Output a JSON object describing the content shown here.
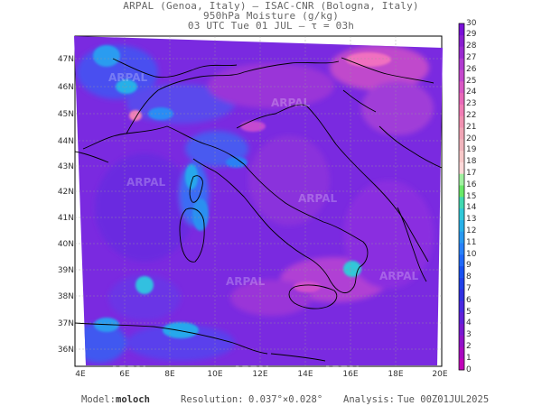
{
  "header": {
    "line1": "ARPAL (Genoa, Italy)  —  ISAC-CNR (Bologna, Italy)",
    "line2": "950hPa Moisture (g/kg)",
    "line3": "03 UTC Tue 01 JUL  —  τ = 03h"
  },
  "map": {
    "lat_labels": [
      "47N",
      "46N",
      "45N",
      "44N",
      "43N",
      "42N",
      "41N",
      "40N",
      "39N",
      "38N",
      "37N",
      "36N"
    ],
    "lon_labels": [
      "4E",
      "6E",
      "8E",
      "10E",
      "12E",
      "14E",
      "16E",
      "18E",
      "20E"
    ],
    "watermark": "ARPAL",
    "field_colors": {
      "low": "#6a1fd8",
      "mid": "#8a2be2",
      "high": "#b041d0",
      "very_high": "#e060b0",
      "blue": "#2a5cff",
      "cyan": "#22b8e8"
    }
  },
  "colorbar": {
    "labels": [
      "30",
      "29",
      "28",
      "27",
      "26",
      "25",
      "24",
      "23",
      "22",
      "21",
      "20",
      "19",
      "18",
      "17",
      "16",
      "15",
      "14",
      "13",
      "12",
      "11",
      "10",
      "9",
      "8",
      "7",
      "6",
      "5",
      "4",
      "3",
      "2",
      "1",
      "0"
    ],
    "colors": [
      "#7a10d8",
      "#8a1ed0",
      "#9a2ad0",
      "#b03ad0",
      "#c448cc",
      "#d858c4",
      "#e868b8",
      "#f07cb4",
      "#f090b0",
      "#f0a4b4",
      "#f0b4bc",
      "#f8c8c8",
      "#ffd8d8",
      "#a0f0a0",
      "#68e868",
      "#40d8b0",
      "#30c8d8",
      "#28b0e8",
      "#2898f0",
      "#2880f8",
      "#2068f8",
      "#1850f0",
      "#2040e8",
      "#3030e0",
      "#4828e0",
      "#6020d8",
      "#7818d0",
      "#9010c8",
      "#a808c0",
      "#c000b8"
    ]
  },
  "footer": {
    "model_label": "Model:",
    "model_value": "moloch",
    "resolution_label": "Resolution:",
    "resolution_value": "0.037°×0.028°",
    "analysis_label": "Analysis:",
    "analysis_value": "Tue 00Z01JUL2025"
  }
}
